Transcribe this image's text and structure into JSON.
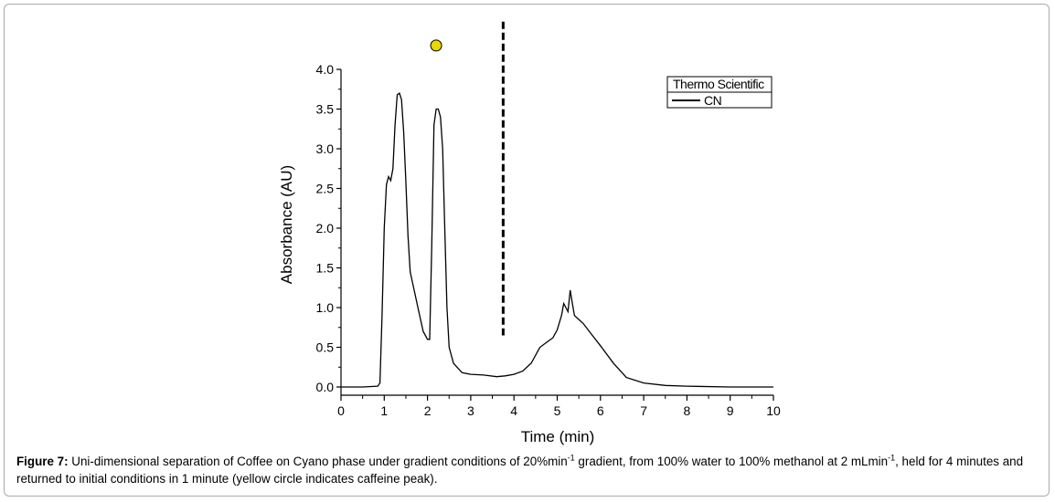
{
  "chart_data": {
    "type": "line",
    "xlabel": "Time (min)",
    "ylabel": "Absorbance (AU)",
    "xlim": [
      0,
      10
    ],
    "ylim": [
      -0.05,
      4.0
    ],
    "x_ticks": [
      "0",
      "1",
      "2",
      "3",
      "4",
      "5",
      "6",
      "7",
      "8",
      "9",
      "10"
    ],
    "y_ticks": [
      "0.0",
      "0.5",
      "1.0",
      "1.5",
      "2.0",
      "2.5",
      "3.0",
      "3.5",
      "4.0"
    ],
    "grid": false,
    "legend": {
      "title": "Thermo Scientific",
      "placement": "top-right"
    },
    "series": [
      {
        "name": "CN",
        "color": "#000000",
        "points": [
          [
            0,
            0.0
          ],
          [
            0.5,
            0.0
          ],
          [
            0.85,
            0.01
          ],
          [
            0.9,
            0.05
          ],
          [
            0.95,
            0.9
          ],
          [
            1.0,
            2.0
          ],
          [
            1.05,
            2.55
          ],
          [
            1.1,
            2.65
          ],
          [
            1.15,
            2.6
          ],
          [
            1.2,
            2.75
          ],
          [
            1.25,
            3.3
          ],
          [
            1.3,
            3.68
          ],
          [
            1.35,
            3.7
          ],
          [
            1.4,
            3.62
          ],
          [
            1.45,
            3.2
          ],
          [
            1.5,
            2.6
          ],
          [
            1.55,
            1.9
          ],
          [
            1.6,
            1.45
          ],
          [
            1.7,
            1.2
          ],
          [
            1.8,
            0.95
          ],
          [
            1.9,
            0.7
          ],
          [
            2.0,
            0.6
          ],
          [
            2.05,
            0.6
          ],
          [
            2.1,
            1.8
          ],
          [
            2.15,
            3.3
          ],
          [
            2.2,
            3.5
          ],
          [
            2.25,
            3.5
          ],
          [
            2.3,
            3.4
          ],
          [
            2.35,
            3.0
          ],
          [
            2.4,
            2.0
          ],
          [
            2.45,
            1.0
          ],
          [
            2.5,
            0.5
          ],
          [
            2.6,
            0.3
          ],
          [
            2.8,
            0.18
          ],
          [
            3.0,
            0.16
          ],
          [
            3.3,
            0.15
          ],
          [
            3.6,
            0.13
          ],
          [
            3.8,
            0.14
          ],
          [
            4.0,
            0.16
          ],
          [
            4.2,
            0.2
          ],
          [
            4.4,
            0.3
          ],
          [
            4.6,
            0.5
          ],
          [
            4.8,
            0.58
          ],
          [
            4.9,
            0.62
          ],
          [
            5.0,
            0.72
          ],
          [
            5.1,
            0.9
          ],
          [
            5.15,
            1.05
          ],
          [
            5.2,
            1.0
          ],
          [
            5.25,
            0.95
          ],
          [
            5.3,
            1.22
          ],
          [
            5.35,
            1.05
          ],
          [
            5.4,
            0.9
          ],
          [
            5.5,
            0.85
          ],
          [
            5.6,
            0.8
          ],
          [
            5.8,
            0.66
          ],
          [
            6.0,
            0.52
          ],
          [
            6.3,
            0.3
          ],
          [
            6.6,
            0.12
          ],
          [
            7.0,
            0.05
          ],
          [
            7.5,
            0.02
          ],
          [
            8.0,
            0.01
          ],
          [
            9.0,
            0.0
          ],
          [
            10.0,
            0.0
          ]
        ]
      }
    ],
    "annotations": [
      {
        "type": "marker",
        "shape": "circle",
        "color": "#e8d800",
        "x": 2.2,
        "y": 4.3
      },
      {
        "type": "vline",
        "style": "dashed",
        "x": 3.75,
        "y_range": [
          0.65,
          4.6
        ]
      }
    ]
  },
  "caption": {
    "label": "Figure 7:",
    "text_1": " Uni-dimensional separation of Coffee on Cyano phase under gradient conditions of 20%min",
    "sup_1": "-1",
    "text_2": " gradient, from 100% water to 100% methanol at 2 mLmin",
    "sup_2": "-1",
    "text_3": ", held for 4 minutes and returned to initial conditions in 1 minute (yellow circle indicates caffeine peak)."
  }
}
